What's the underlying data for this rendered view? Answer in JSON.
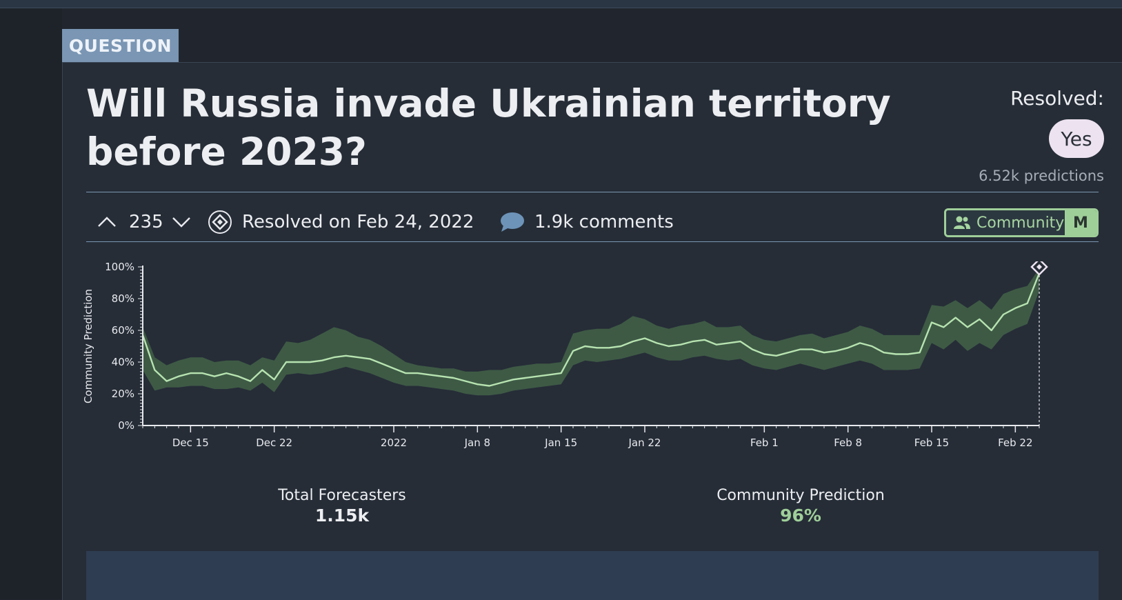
{
  "tag": "QUESTION",
  "question": {
    "title": "Will Russia invade Ukrainian territory before 2023?",
    "resolved_label": "Resolved:",
    "resolution": "Yes",
    "predictions": "6.52k predictions"
  },
  "toolbar": {
    "votes": "235",
    "resolved_on": "Resolved on Feb 24, 2022",
    "comments": "1.9k comments",
    "community_label": "Community",
    "mode_label": "M"
  },
  "stats": {
    "forecasters_label": "Total Forecasters",
    "forecasters_value": "1.15k",
    "prediction_label": "Community Prediction",
    "prediction_value": "96%"
  },
  "colors": {
    "accent_green": "#9fcf99",
    "band": "#3e5a45",
    "tag_bg": "#7a96b4",
    "resolved_pill": "#ede3f0"
  },
  "icons": [
    "chevron-up-icon",
    "chevron-down-icon",
    "resolved-diamond-icon",
    "comment-bubble-icon",
    "people-icon"
  ],
  "chart_data": {
    "type": "line",
    "ylabel": "Community Prediction",
    "yticks": [
      "0%",
      "20%",
      "40%",
      "60%",
      "80%",
      "100%"
    ],
    "ylim": [
      0,
      100
    ],
    "xlim": [
      "2021-12-11",
      "2022-02-24"
    ],
    "xticks": [
      {
        "date": "2021-12-15",
        "label": "Dec 15"
      },
      {
        "date": "2021-12-22",
        "label": "Dec 22"
      },
      {
        "date": "2022-01-01",
        "label": "2022"
      },
      {
        "date": "2022-01-08",
        "label": "Jan 8"
      },
      {
        "date": "2022-01-15",
        "label": "Jan 15"
      },
      {
        "date": "2022-01-22",
        "label": "Jan 22"
      },
      {
        "date": "2022-02-01",
        "label": "Feb 1"
      },
      {
        "date": "2022-02-08",
        "label": "Feb 8"
      },
      {
        "date": "2022-02-15",
        "label": "Feb 15"
      },
      {
        "date": "2022-02-22",
        "label": "Feb 22"
      }
    ],
    "resolution_marker": {
      "date": "2022-02-24",
      "value": 100
    },
    "series": [
      {
        "x": [
          "2021-12-11",
          "2021-12-12",
          "2021-12-13",
          "2021-12-14",
          "2021-12-15",
          "2021-12-16",
          "2021-12-17",
          "2021-12-18",
          "2021-12-19",
          "2021-12-20",
          "2021-12-21",
          "2021-12-22",
          "2021-12-23",
          "2021-12-24",
          "2021-12-25",
          "2021-12-26",
          "2021-12-27",
          "2021-12-28",
          "2021-12-29",
          "2021-12-30",
          "2021-12-31",
          "2022-01-01",
          "2022-01-02",
          "2022-01-03",
          "2022-01-04",
          "2022-01-05",
          "2022-01-06",
          "2022-01-07",
          "2022-01-08",
          "2022-01-09",
          "2022-01-10",
          "2022-01-11",
          "2022-01-12",
          "2022-01-13",
          "2022-01-14",
          "2022-01-15",
          "2022-01-16",
          "2022-01-17",
          "2022-01-18",
          "2022-01-19",
          "2022-01-20",
          "2022-01-21",
          "2022-01-22",
          "2022-01-23",
          "2022-01-24",
          "2022-01-25",
          "2022-01-26",
          "2022-01-27",
          "2022-01-28",
          "2022-01-29",
          "2022-01-30",
          "2022-01-31",
          "2022-02-01",
          "2022-02-02",
          "2022-02-03",
          "2022-02-04",
          "2022-02-05",
          "2022-02-06",
          "2022-02-07",
          "2022-02-08",
          "2022-02-09",
          "2022-02-10",
          "2022-02-11",
          "2022-02-12",
          "2022-02-13",
          "2022-02-14",
          "2022-02-15",
          "2022-02-16",
          "2022-02-17",
          "2022-02-18",
          "2022-02-19",
          "2022-02-20",
          "2022-02-21",
          "2022-02-22",
          "2022-02-23",
          "2022-02-24"
        ],
        "values": [
          57,
          35,
          28,
          31,
          33,
          33,
          31,
          33,
          31,
          28,
          35,
          29,
          40,
          40,
          40,
          41,
          43,
          44,
          43,
          42,
          39,
          36,
          33,
          33,
          32,
          31,
          30,
          28,
          26,
          25,
          27,
          29,
          30,
          31,
          32,
          33,
          47,
          50,
          49,
          49,
          50,
          53,
          55,
          52,
          50,
          51,
          53,
          54,
          51,
          52,
          53,
          48,
          45,
          44,
          46,
          48,
          48,
          46,
          47,
          49,
          52,
          50,
          46,
          45,
          45,
          46,
          65,
          62,
          68,
          62,
          67,
          60,
          70,
          74,
          77,
          96
        ],
        "lower": [
          35,
          22,
          24,
          24,
          25,
          25,
          23,
          23,
          24,
          22,
          27,
          21,
          32,
          33,
          32,
          33,
          35,
          37,
          35,
          33,
          30,
          27,
          25,
          25,
          24,
          23,
          22,
          20,
          19,
          19,
          20,
          22,
          23,
          24,
          25,
          26,
          38,
          41,
          40,
          41,
          42,
          44,
          46,
          43,
          41,
          41,
          43,
          44,
          42,
          41,
          42,
          38,
          36,
          35,
          37,
          39,
          37,
          35,
          37,
          39,
          41,
          39,
          35,
          35,
          35,
          36,
          52,
          48,
          54,
          47,
          52,
          48,
          57,
          61,
          64,
          85
        ],
        "upper": [
          62,
          43,
          38,
          41,
          43,
          43,
          40,
          41,
          41,
          38,
          43,
          41,
          53,
          52,
          54,
          58,
          62,
          60,
          56,
          54,
          50,
          45,
          40,
          38,
          37,
          36,
          36,
          34,
          34,
          35,
          35,
          37,
          38,
          39,
          39,
          40,
          58,
          60,
          61,
          61,
          64,
          69,
          67,
          63,
          61,
          63,
          64,
          66,
          62,
          62,
          63,
          57,
          54,
          53,
          55,
          57,
          58,
          55,
          57,
          59,
          63,
          61,
          57,
          57,
          57,
          57,
          76,
          75,
          79,
          74,
          79,
          73,
          83,
          86,
          88,
          99
        ]
      }
    ]
  }
}
